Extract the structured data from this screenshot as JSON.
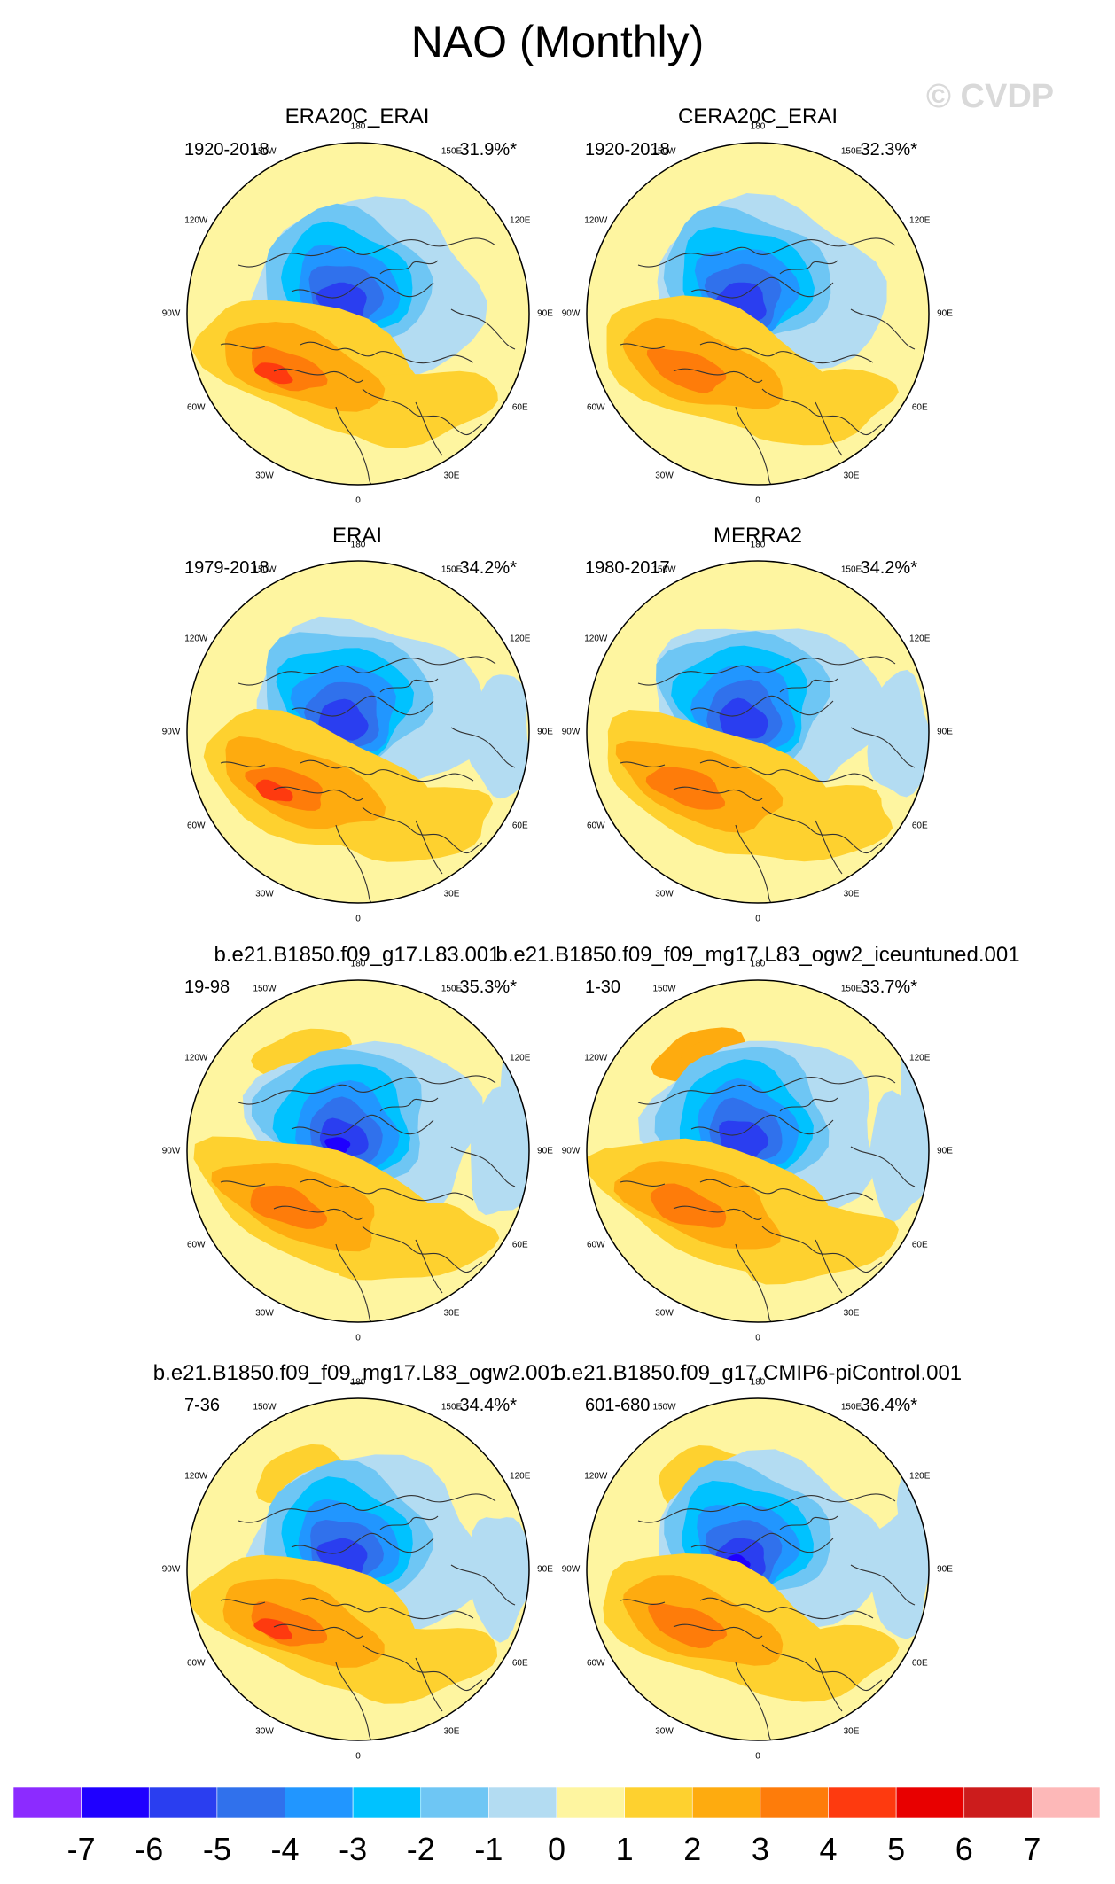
{
  "title": "NAO (Monthly)",
  "watermark": "© CVDP",
  "colors": {
    "palette": [
      "#8c2bff",
      "#1f00ff",
      "#2a3ef0",
      "#3071ec",
      "#2196ff",
      "#00c2ff",
      "#6ec6f4",
      "#b3dcf2",
      "#fef5a0",
      "#fed12f",
      "#feab0f",
      "#fe7c0a",
      "#fe3a0f",
      "#e80000",
      "#cc1c1c",
      "#fdb8b8"
    ],
    "land_outline": "#333333"
  },
  "lon_labels": [
    "180",
    "150E",
    "120E",
    "90E",
    "60E",
    "30E",
    "0",
    "30W",
    "60W",
    "90W",
    "120W",
    "150W"
  ],
  "panels": [
    {
      "title": "ERA20C_ERAI",
      "period": "1920-2018",
      "pct": "31.9%*"
    },
    {
      "title": "CERA20C_ERAI",
      "period": "1920-2018",
      "pct": "32.3%*"
    },
    {
      "title": "ERAI",
      "period": "1979-2018",
      "pct": "34.2%*"
    },
    {
      "title": "MERRA2",
      "period": "1980-2017",
      "pct": "34.2%*"
    },
    {
      "title": "b.e21.B1850.f09_g17.L83.001",
      "period": "19-98",
      "pct": "35.3%*"
    },
    {
      "title": "b.e21.B1850.f09_f09_mg17.L83_ogw2_iceuntuned.001",
      "period": "1-30",
      "pct": "33.7%*"
    },
    {
      "title": "b.e21.B1850.f09_f09_mg17.L83_ogw2.001",
      "period": "7-36",
      "pct": "34.4%*"
    },
    {
      "title": "b.e21.B1850.f09_g17.CMIP6-piControl.001",
      "period": "601-680",
      "pct": "36.4%*"
    }
  ],
  "colorbar": {
    "ticks": [
      "-7",
      "-6",
      "-5",
      "-4",
      "-3",
      "-2",
      "-1",
      "0",
      "1",
      "2",
      "3",
      "4",
      "5",
      "6",
      "7"
    ]
  }
}
